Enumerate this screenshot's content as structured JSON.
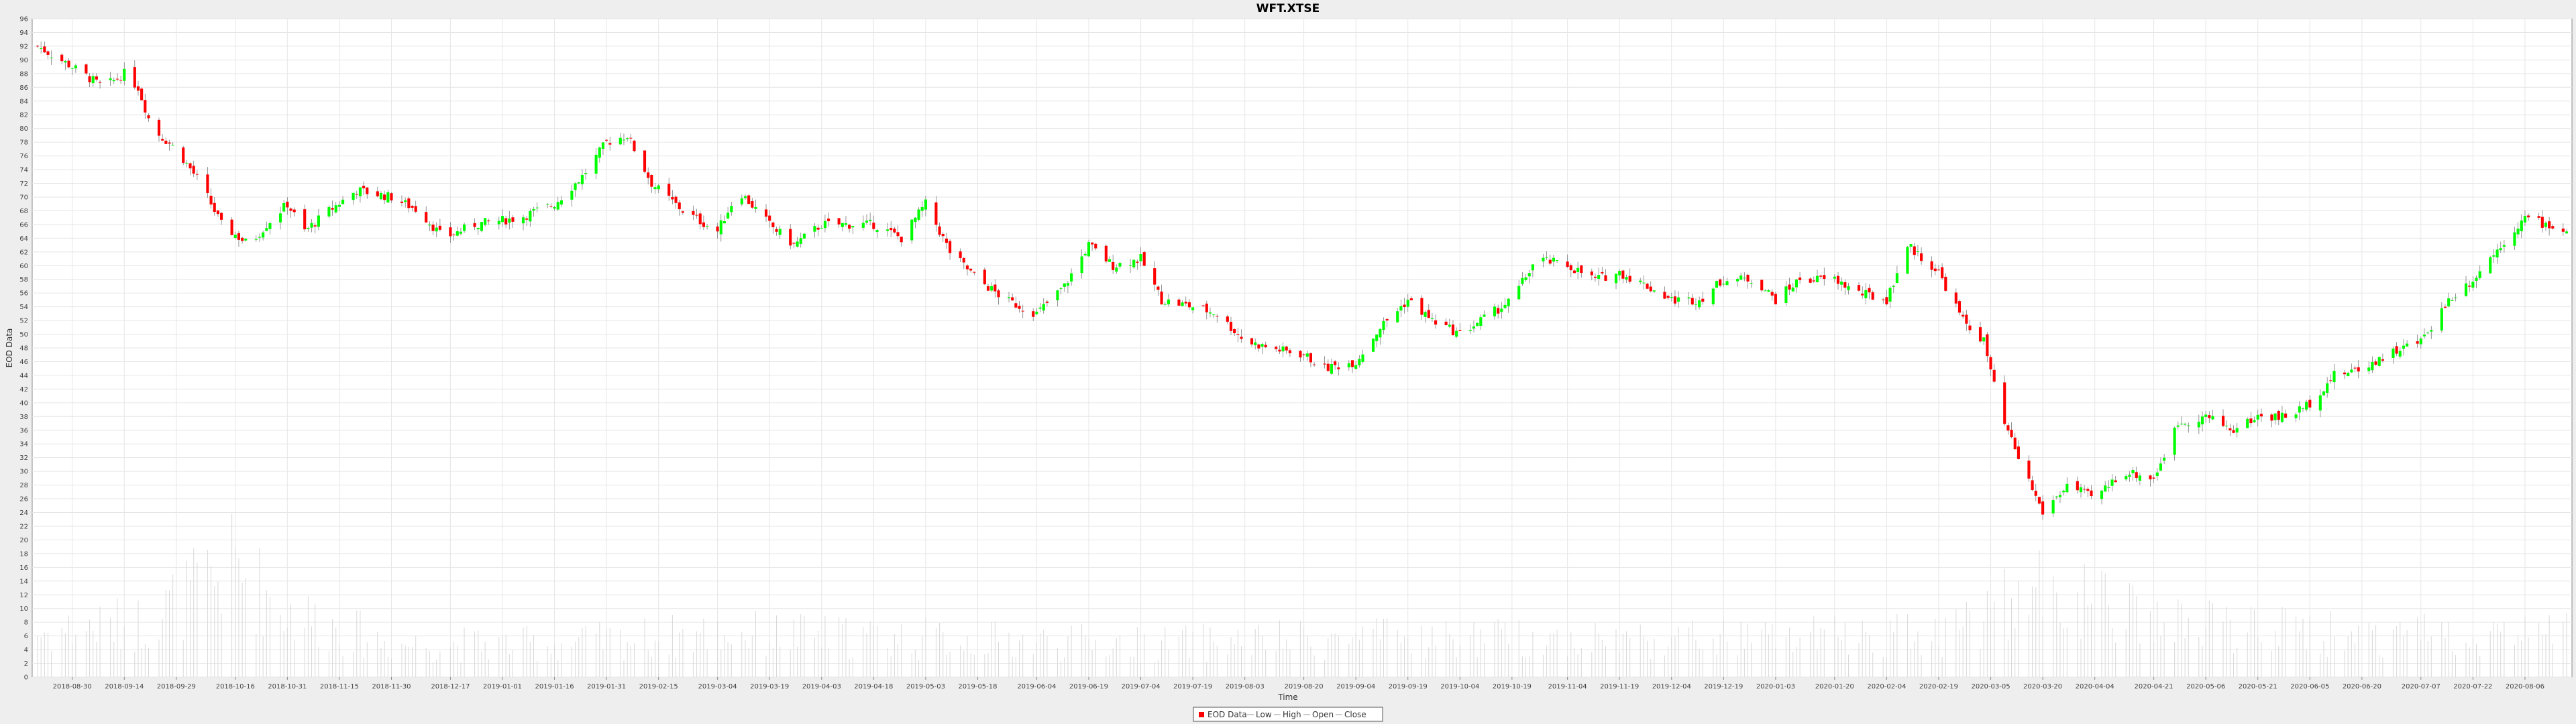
{
  "chart_data": {
    "type": "candlestick",
    "title": "WFT.XTSE",
    "xlabel": "Time",
    "ylabel": "EOD Data",
    "ylim": [
      0,
      96
    ],
    "yticks": [
      0,
      2,
      4,
      6,
      8,
      10,
      12,
      14,
      16,
      18,
      20,
      22,
      24,
      26,
      28,
      30,
      32,
      34,
      36,
      38,
      40,
      42,
      44,
      46,
      48,
      50,
      52,
      54,
      56,
      58,
      60,
      62,
      64,
      66,
      68,
      70,
      72,
      74,
      76,
      78,
      80,
      82,
      84,
      86,
      88,
      90,
      92,
      94,
      96
    ],
    "x_start": "2018-08-20",
    "x_end": "2020-08-18",
    "x_tick_labels": [
      "2018-08-30",
      "2018-09-14",
      "2018-09-29",
      "2018-10-16",
      "2018-10-31",
      "2018-11-15",
      "2018-11-30",
      "2018-12-17",
      "2019-01-01",
      "2019-01-16",
      "2019-01-31",
      "2019-02-15",
      "2019-03-04",
      "2019-03-19",
      "2019-04-03",
      "2019-04-18",
      "2019-05-03",
      "2019-05-18",
      "2019-06-04",
      "2019-06-19",
      "2019-07-04",
      "2019-07-19",
      "2019-08-03",
      "2019-08-20",
      "2019-09-04",
      "2019-09-19",
      "2019-10-04",
      "2019-10-19",
      "2019-11-04",
      "2019-11-19",
      "2019-12-04",
      "2019-12-19",
      "2020-01-03",
      "2020-01-20",
      "2020-02-04",
      "2020-02-19",
      "2020-03-05",
      "2020-03-20",
      "2020-04-04",
      "2020-04-21",
      "2020-05-06",
      "2020-05-21",
      "2020-06-05",
      "2020-06-20",
      "2020-07-07",
      "2020-07-22",
      "2020-08-06"
    ],
    "close_trend": [
      {
        "date": "2018-08-20",
        "close": 92
      },
      {
        "date": "2018-08-30",
        "close": 89
      },
      {
        "date": "2018-09-08",
        "close": 86
      },
      {
        "date": "2018-09-14",
        "close": 88
      },
      {
        "date": "2018-09-18",
        "close": 86
      },
      {
        "date": "2018-09-22",
        "close": 80
      },
      {
        "date": "2018-09-29",
        "close": 77
      },
      {
        "date": "2018-10-06",
        "close": 72
      },
      {
        "date": "2018-10-12",
        "close": 66
      },
      {
        "date": "2018-10-20",
        "close": 63
      },
      {
        "date": "2018-10-25",
        "close": 66
      },
      {
        "date": "2018-10-31",
        "close": 69
      },
      {
        "date": "2018-11-05",
        "close": 65
      },
      {
        "date": "2018-11-12",
        "close": 68
      },
      {
        "date": "2018-11-20",
        "close": 71
      },
      {
        "date": "2018-11-30",
        "close": 70
      },
      {
        "date": "2018-12-08",
        "close": 68
      },
      {
        "date": "2018-12-15",
        "close": 64
      },
      {
        "date": "2018-12-24",
        "close": 66
      },
      {
        "date": "2019-01-06",
        "close": 67
      },
      {
        "date": "2019-01-16",
        "close": 69
      },
      {
        "date": "2019-01-24",
        "close": 73
      },
      {
        "date": "2019-01-31",
        "close": 78
      },
      {
        "date": "2019-02-06",
        "close": 79
      },
      {
        "date": "2019-02-13",
        "close": 72
      },
      {
        "date": "2019-02-22",
        "close": 68
      },
      {
        "date": "2019-03-04",
        "close": 65
      },
      {
        "date": "2019-03-10",
        "close": 71
      },
      {
        "date": "2019-03-19",
        "close": 66
      },
      {
        "date": "2019-03-26",
        "close": 63
      },
      {
        "date": "2019-04-03",
        "close": 66
      },
      {
        "date": "2019-04-18",
        "close": 66
      },
      {
        "date": "2019-04-26",
        "close": 64
      },
      {
        "date": "2019-05-03",
        "close": 69
      },
      {
        "date": "2019-05-10",
        "close": 62
      },
      {
        "date": "2019-05-18",
        "close": 58
      },
      {
        "date": "2019-05-26",
        "close": 55
      },
      {
        "date": "2019-06-04",
        "close": 53
      },
      {
        "date": "2019-06-12",
        "close": 57
      },
      {
        "date": "2019-06-19",
        "close": 63
      },
      {
        "date": "2019-06-26",
        "close": 60
      },
      {
        "date": "2019-07-04",
        "close": 61
      },
      {
        "date": "2019-07-10",
        "close": 55
      },
      {
        "date": "2019-07-19",
        "close": 54
      },
      {
        "date": "2019-07-26",
        "close": 53
      },
      {
        "date": "2019-08-03",
        "close": 49
      },
      {
        "date": "2019-08-10",
        "close": 48
      },
      {
        "date": "2019-08-20",
        "close": 47
      },
      {
        "date": "2019-08-26",
        "close": 45
      },
      {
        "date": "2019-09-04",
        "close": 46
      },
      {
        "date": "2019-09-11",
        "close": 51
      },
      {
        "date": "2019-09-19",
        "close": 55
      },
      {
        "date": "2019-09-26",
        "close": 52
      },
      {
        "date": "2019-10-04",
        "close": 50
      },
      {
        "date": "2019-10-10",
        "close": 52
      },
      {
        "date": "2019-10-19",
        "close": 55
      },
      {
        "date": "2019-10-26",
        "close": 61
      },
      {
        "date": "2019-11-04",
        "close": 60
      },
      {
        "date": "2019-11-12",
        "close": 58
      },
      {
        "date": "2019-11-19",
        "close": 59
      },
      {
        "date": "2019-11-27",
        "close": 57
      },
      {
        "date": "2019-12-04",
        "close": 55
      },
      {
        "date": "2019-12-12",
        "close": 55
      },
      {
        "date": "2019-12-19",
        "close": 58
      },
      {
        "date": "2019-12-28",
        "close": 58
      },
      {
        "date": "2020-01-03",
        "close": 55
      },
      {
        "date": "2020-01-10",
        "close": 58
      },
      {
        "date": "2020-01-20",
        "close": 58
      },
      {
        "date": "2020-01-27",
        "close": 56
      },
      {
        "date": "2020-02-04",
        "close": 55
      },
      {
        "date": "2020-02-10",
        "close": 63
      },
      {
        "date": "2020-02-19",
        "close": 59
      },
      {
        "date": "2020-02-26",
        "close": 52
      },
      {
        "date": "2020-03-03",
        "close": 49
      },
      {
        "date": "2020-03-08",
        "close": 38
      },
      {
        "date": "2020-03-13",
        "close": 32
      },
      {
        "date": "2020-03-20",
        "close": 24
      },
      {
        "date": "2020-03-27",
        "close": 28
      },
      {
        "date": "2020-04-04",
        "close": 26
      },
      {
        "date": "2020-04-12",
        "close": 30
      },
      {
        "date": "2020-04-21",
        "close": 29
      },
      {
        "date": "2020-04-28",
        "close": 37
      },
      {
        "date": "2020-05-06",
        "close": 38
      },
      {
        "date": "2020-05-14",
        "close": 36
      },
      {
        "date": "2020-05-21",
        "close": 38
      },
      {
        "date": "2020-05-30",
        "close": 38
      },
      {
        "date": "2020-06-05",
        "close": 40
      },
      {
        "date": "2020-06-12",
        "close": 44
      },
      {
        "date": "2020-06-20",
        "close": 45
      },
      {
        "date": "2020-06-27",
        "close": 47
      },
      {
        "date": "2020-07-07",
        "close": 49
      },
      {
        "date": "2020-07-15",
        "close": 55
      },
      {
        "date": "2020-07-22",
        "close": 58
      },
      {
        "date": "2020-07-30",
        "close": 63
      },
      {
        "date": "2020-08-06",
        "close": 67
      },
      {
        "date": "2020-08-12",
        "close": 66
      },
      {
        "date": "2020-08-18",
        "close": 65
      }
    ],
    "volume_trend": [
      {
        "date": "2018-08-20",
        "volume": 8
      },
      {
        "date": "2018-09-20",
        "volume": 10
      },
      {
        "date": "2018-10-16",
        "volume": 20
      },
      {
        "date": "2018-10-31",
        "volume": 12
      },
      {
        "date": "2018-11-30",
        "volume": 6
      },
      {
        "date": "2019-01-16",
        "volume": 6
      },
      {
        "date": "2019-03-04",
        "volume": 8
      },
      {
        "date": "2019-05-03",
        "volume": 7
      },
      {
        "date": "2019-07-04",
        "volume": 6
      },
      {
        "date": "2019-09-04",
        "volume": 7
      },
      {
        "date": "2019-11-04",
        "volume": 7
      },
      {
        "date": "2020-01-03",
        "volume": 7
      },
      {
        "date": "2020-02-19",
        "volume": 8
      },
      {
        "date": "2020-03-20",
        "volume": 16
      },
      {
        "date": "2020-04-21",
        "volume": 10
      },
      {
        "date": "2020-06-05",
        "volume": 8
      },
      {
        "date": "2020-08-18",
        "volume": 8
      }
    ],
    "up_color": "#00ff00",
    "down_color": "#ff0000",
    "grid": true,
    "legend_placement": "bottom-center",
    "legend": [
      "EOD Data",
      "Low",
      "High",
      "Open",
      "Close"
    ]
  }
}
